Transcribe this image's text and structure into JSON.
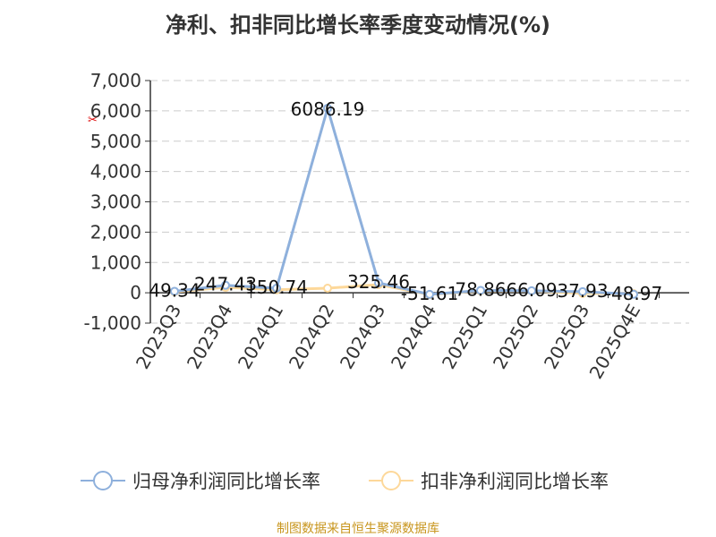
{
  "chart_data": {
    "type": "line",
    "title": "净利、扣非同比增长率季度变动情况(%)",
    "categories": [
      "2023Q3",
      "2023Q4",
      "2024Q1",
      "2024Q2",
      "2024Q3",
      "2024Q4",
      "2025Q1",
      "2025Q2",
      "2025Q3",
      "2025Q4E"
    ],
    "ylim": [
      -1000,
      7000
    ],
    "yticks": [
      "-1,000",
      "0",
      "1,000",
      "2,000",
      "3,000",
      "4,000",
      "5,000",
      "6,000",
      "7,000"
    ],
    "grid": true,
    "legend_position": "bottom",
    "series": [
      {
        "name": "归母净利润同比增长率",
        "color": "#8eb0dc",
        "values": [
          49.34,
          247.43,
          150.74,
          6086.19,
          325.46,
          -51.61,
          78.86,
          66.09,
          37.93,
          -48.97
        ],
        "labels": [
          "49.34",
          "247.43",
          "150.74",
          "6086.19",
          "325.46",
          "-51.61",
          "78.86",
          "66.09",
          "37.93",
          "-48.97"
        ]
      },
      {
        "name": "扣非净利润同比增长率",
        "color": "#fdd89a",
        "values": [
          30,
          180,
          100,
          150,
          270,
          -60,
          60,
          60,
          -20,
          -30
        ]
      }
    ]
  },
  "source": "制图数据来自恒生聚源数据库"
}
